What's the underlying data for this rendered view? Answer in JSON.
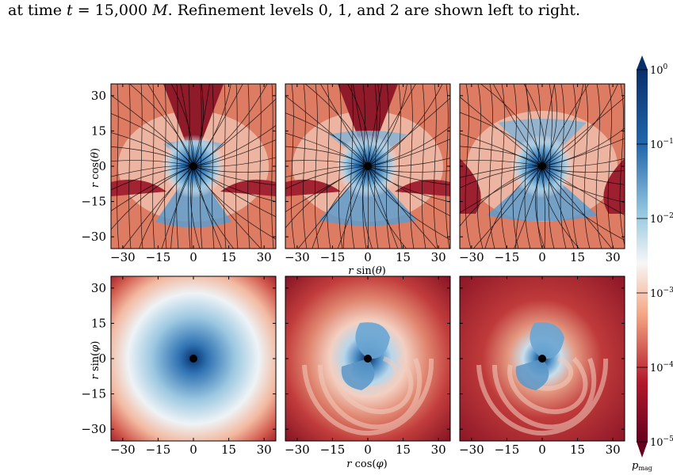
{
  "caption": {
    "prefix": "at time ",
    "var": "t",
    "middle": " = 15,000 ",
    "unit": "M",
    "suffix": ". Refinement levels 0, 1, and 2 are shown left to right."
  },
  "colorbar": {
    "label": "p",
    "label_sub": "mag",
    "tick_labels": [
      "10^0",
      "10^-1",
      "10^-2",
      "10^-3",
      "10^-4",
      "10^-5"
    ],
    "colors": [
      "#08306b",
      "#2166ac",
      "#92c5de",
      "#f7f7f7",
      "#f4a582",
      "#b2182b",
      "#67001f"
    ]
  },
  "axes": {
    "ticks": [
      "−30",
      "−15",
      "0",
      "15",
      "30"
    ],
    "top_xlabel": {
      "var": "r",
      "fn": "sin(",
      "arg": "θ",
      "close": ")"
    },
    "top_ylabel": {
      "var": "r",
      "fn": "cos(",
      "arg": "θ",
      "close": ")"
    },
    "bottom_xlabel": {
      "var": "r",
      "fn": "cos(",
      "arg": "φ",
      "close": ")"
    },
    "bottom_ylabel": {
      "var": "r",
      "fn": "sin(",
      "arg": "φ",
      "close": ")"
    }
  },
  "panels": {
    "top": [
      "refinement-level-0-poloidal",
      "refinement-level-1-poloidal",
      "refinement-level-2-poloidal"
    ],
    "bottom": [
      "refinement-level-0-equatorial",
      "refinement-level-1-equatorial",
      "refinement-level-2-equatorial"
    ]
  }
}
